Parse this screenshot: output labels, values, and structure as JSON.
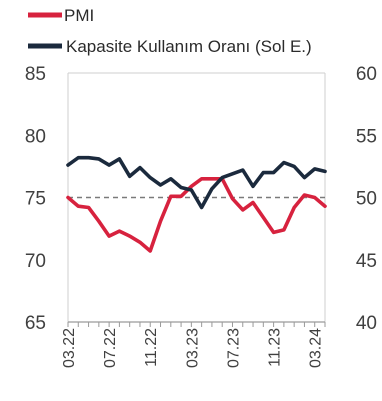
{
  "chart_data": {
    "type": "line",
    "title": "",
    "legend": [
      {
        "name": "PMI",
        "color": "#d7223e"
      },
      {
        "name": "Kapasite Kullanım Oranı (Sol E.)",
        "color": "#1b2a3d"
      }
    ],
    "x_tick_labels": [
      "03.22",
      "07.22",
      "11.22",
      "03.23",
      "07.23",
      "11.23",
      "03.24"
    ],
    "x": [
      "03.22",
      "04.22",
      "05.22",
      "06.22",
      "07.22",
      "08.22",
      "09.22",
      "10.22",
      "11.22",
      "12.22",
      "01.23",
      "02.23",
      "03.23",
      "04.23",
      "05.23",
      "06.23",
      "07.23",
      "08.23",
      "09.23",
      "10.23",
      "11.23",
      "12.23",
      "01.24",
      "02.24",
      "03.24",
      "04.24"
    ],
    "left_axis": {
      "ticks": [
        65,
        70,
        75,
        80,
        85
      ],
      "ylim": [
        65,
        85
      ]
    },
    "right_axis": {
      "ticks": [
        40,
        45,
        50,
        55,
        60
      ],
      "ylim": [
        40,
        60
      ]
    },
    "reference_line": {
      "axis": "right",
      "value": 50,
      "style": "dashed"
    },
    "series": [
      {
        "name": "PMI",
        "axis": "right",
        "color": "#d7223e",
        "values": [
          50.0,
          49.3,
          49.2,
          48.1,
          46.9,
          47.3,
          46.9,
          46.4,
          45.7,
          48.1,
          50.1,
          50.1,
          50.9,
          51.5,
          51.5,
          51.5,
          49.9,
          49.0,
          49.6,
          48.4,
          47.2,
          47.4,
          49.2,
          50.2,
          50.0,
          49.3
        ]
      },
      {
        "name": "Kapasite Kullanım Oranı (Sol E.)",
        "axis": "left",
        "color": "#1b2a3d",
        "values": [
          77.6,
          78.2,
          78.2,
          78.1,
          77.6,
          78.1,
          76.7,
          77.4,
          76.6,
          76.0,
          76.5,
          75.8,
          75.6,
          74.2,
          75.7,
          76.6,
          76.9,
          77.2,
          75.9,
          77.0,
          77.0,
          77.8,
          77.5,
          76.6,
          77.3,
          77.1
        ]
      }
    ]
  }
}
